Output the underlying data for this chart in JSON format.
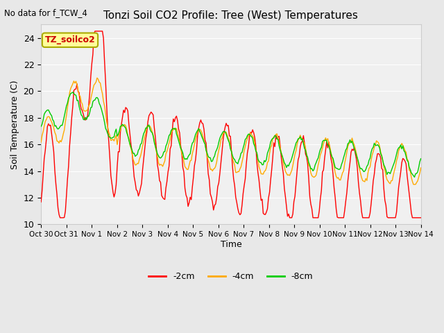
{
  "title": "Tonzi Soil CO2 Profile: Tree (West) Temperatures",
  "xlabel": "Time",
  "ylabel": "Soil Temperature (C)",
  "no_data_label": "No data for f_TCW_4",
  "annotation_label": "TZ_soilco2",
  "ylim": [
    10,
    25
  ],
  "yticks": [
    10,
    12,
    14,
    16,
    18,
    20,
    22,
    24
  ],
  "x_tick_labels": [
    "Oct 30",
    "Oct 31",
    "Nov 1",
    "Nov 2",
    "Nov 3",
    "Nov 4",
    "Nov 5",
    "Nov 6",
    "Nov 7",
    "Nov 8",
    "Nov 9",
    "Nov 10",
    "Nov 11",
    "Nov 12",
    "Nov 13",
    "Nov 14"
  ],
  "bg_color": "#e8e8e8",
  "plot_bg_color": "#f0f0f0",
  "line_colors": {
    "2cm": "#ff0000",
    "4cm": "#ffaa00",
    "8cm": "#00cc00"
  },
  "legend_labels": [
    "-2cm",
    "-4cm",
    "-8cm"
  ],
  "legend_colors": [
    "#ff0000",
    "#ffaa00",
    "#00cc00"
  ],
  "annotation_bg": "#ffff99",
  "annotation_border": "#aaaa00",
  "grid_color": "#ffffff",
  "xlim": [
    0,
    15
  ],
  "xtick_positions": [
    0,
    1,
    2,
    3,
    4,
    5,
    6,
    7,
    8,
    9,
    10,
    11,
    12,
    13,
    14,
    15
  ]
}
